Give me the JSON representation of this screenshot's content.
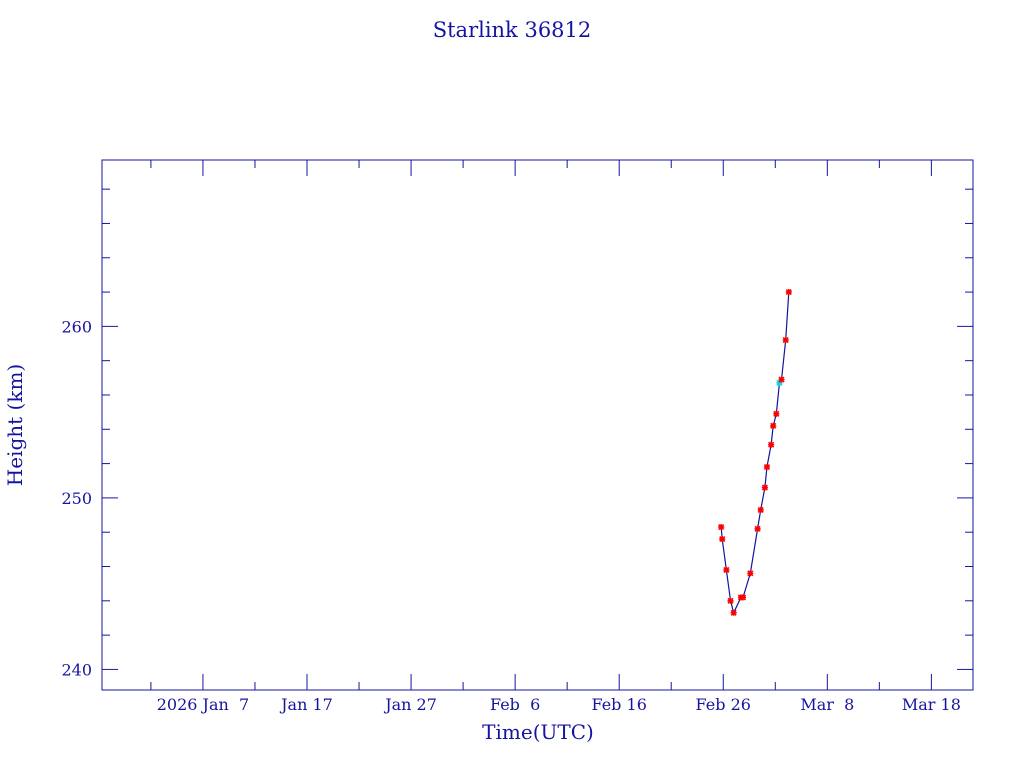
{
  "chart_data": {
    "type": "line",
    "title": "Starlink 36812",
    "xlabel": "Time(UTC)",
    "ylabel": "Height (km)",
    "x_units": "days since 2026 Jan 1 00:00 UTC",
    "xlim": [
      -3.7,
      80.0
    ],
    "ylim": [
      238.8,
      269.7
    ],
    "x_major_ticks": [
      {
        "value": 6,
        "label": "2026 Jan  7"
      },
      {
        "value": 16,
        "label": "Jan 17"
      },
      {
        "value": 26,
        "label": "Jan 27"
      },
      {
        "value": 36,
        "label": "Feb  6"
      },
      {
        "value": 46,
        "label": "Feb 16"
      },
      {
        "value": 56,
        "label": "Feb 26"
      },
      {
        "value": 66,
        "label": "Mar  8"
      },
      {
        "value": 76,
        "label": "Mar 18"
      }
    ],
    "x_minor_step": 5,
    "y_major_ticks": [
      {
        "value": 240,
        "label": "240"
      },
      {
        "value": 250,
        "label": "250"
      },
      {
        "value": 260,
        "label": "260"
      }
    ],
    "y_minor_step": 2,
    "grid": false,
    "colors": {
      "axes": "#1414a0",
      "line": "#1414a0",
      "marker": "#ff0000",
      "highlight_marker": "#00d8e8"
    },
    "series": [
      {
        "name": "height",
        "points": [
          {
            "x": 55.8,
            "y": 248.3
          },
          {
            "x": 55.9,
            "y": 247.6
          },
          {
            "x": 56.3,
            "y": 245.8
          },
          {
            "x": 56.7,
            "y": 244.0
          },
          {
            "x": 57.0,
            "y": 243.3
          },
          {
            "x": 57.7,
            "y": 244.2
          },
          {
            "x": 57.9,
            "y": 244.2
          },
          {
            "x": 58.6,
            "y": 245.6
          },
          {
            "x": 59.3,
            "y": 248.2
          },
          {
            "x": 59.6,
            "y": 249.3
          },
          {
            "x": 60.0,
            "y": 250.6
          },
          {
            "x": 60.2,
            "y": 251.8
          },
          {
            "x": 60.6,
            "y": 253.1
          },
          {
            "x": 60.8,
            "y": 254.2
          },
          {
            "x": 61.1,
            "y": 254.9
          },
          {
            "x": 61.4,
            "y": 256.7,
            "highlight": true
          },
          {
            "x": 61.6,
            "y": 256.9
          },
          {
            "x": 62.0,
            "y": 259.2
          },
          {
            "x": 62.3,
            "y": 262.0
          }
        ]
      }
    ]
  }
}
